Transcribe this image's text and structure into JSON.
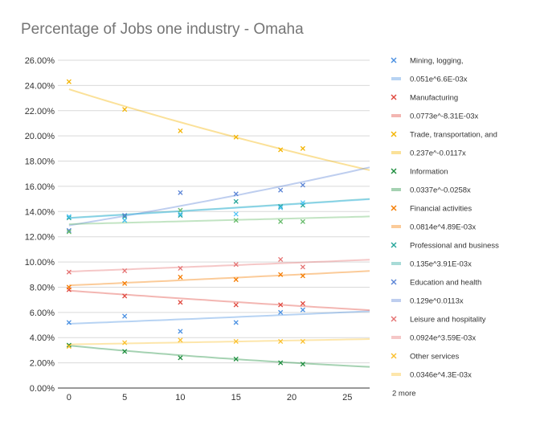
{
  "chart_data": {
    "type": "scatter",
    "title": "Percentage of Jobs one industry - Omaha",
    "xlabel": "",
    "ylabel": "",
    "xlim": [
      -1,
      27
    ],
    "ylim": [
      0,
      0.26
    ],
    "x_ticks": [
      "0",
      "5",
      "10",
      "15",
      "20",
      "25"
    ],
    "y_ticks": [
      "0.00%",
      "2.00%",
      "4.00%",
      "6.00%",
      "8.00%",
      "10.00%",
      "12.00%",
      "14.00%",
      "16.00%",
      "18.00%",
      "20.00%",
      "22.00%",
      "24.00%",
      "26.00%"
    ],
    "grid": true,
    "legend_position": "right",
    "legend_more": "2 more",
    "series": [
      {
        "name": "Mining, logging,",
        "color": "#4a90e2",
        "x": [
          0,
          5,
          10,
          15,
          19,
          21
        ],
        "y": [
          0.052,
          0.057,
          0.045,
          0.052,
          0.06,
          0.062
        ],
        "trend": {
          "label": "0.051e^6.6E-03x",
          "a": 0.051,
          "b": 0.0066
        }
      },
      {
        "name": "Manufacturing",
        "color": "#e0483e",
        "x": [
          0,
          5,
          10,
          15,
          19,
          21
        ],
        "y": [
          0.078,
          0.073,
          0.068,
          0.066,
          0.066,
          0.067
        ],
        "trend": {
          "label": "0.0773e^-8.31E-03x",
          "a": 0.0773,
          "b": -0.00831
        }
      },
      {
        "name": "Trade, transportation, and",
        "color": "#f4b400",
        "x": [
          0,
          5,
          10,
          15,
          19,
          21
        ],
        "y": [
          0.243,
          0.221,
          0.204,
          0.199,
          0.189,
          0.19
        ],
        "trend": {
          "label": "0.237e^-0.0117x",
          "a": 0.237,
          "b": -0.0117
        }
      },
      {
        "name": "Information",
        "color": "#1e8e3e",
        "x": [
          0,
          5,
          10,
          15,
          19,
          21
        ],
        "y": [
          0.034,
          0.029,
          0.024,
          0.023,
          0.02,
          0.019
        ],
        "trend": {
          "label": "0.0337e^-0.0258x",
          "a": 0.0337,
          "b": -0.0258
        }
      },
      {
        "name": "Financial activities",
        "color": "#f57c00",
        "x": [
          0,
          5,
          10,
          15,
          19,
          21
        ],
        "y": [
          0.08,
          0.083,
          0.088,
          0.086,
          0.09,
          0.089
        ],
        "trend": {
          "label": "0.0814e^4.89E-03x",
          "a": 0.0814,
          "b": 0.00489
        }
      },
      {
        "name": "Professional and business",
        "color": "#26a69a",
        "x": [
          0,
          5,
          10,
          15,
          19,
          21
        ],
        "y": [
          0.135,
          0.136,
          0.137,
          0.148,
          0.144,
          0.145
        ],
        "trend": {
          "label": "0.135e^3.91E-03x",
          "a": 0.135,
          "b": 0.00391
        }
      },
      {
        "name": "Education and health",
        "color": "#5c85d6",
        "x": [
          0,
          5,
          10,
          15,
          19,
          21
        ],
        "y": [
          0.125,
          0.137,
          0.155,
          0.154,
          0.157,
          0.161
        ],
        "trend": {
          "label": "0.129e^0.0113x",
          "a": 0.129,
          "b": 0.0113
        }
      },
      {
        "name": "Leisure and hospitality",
        "color": "#e57373",
        "x": [
          0,
          5,
          10,
          15,
          19,
          21
        ],
        "y": [
          0.092,
          0.093,
          0.095,
          0.098,
          0.102,
          0.096
        ],
        "trend": {
          "label": "0.0924e^3.59E-03x",
          "a": 0.0924,
          "b": 0.00359
        }
      },
      {
        "name": "Other services",
        "color": "#fbc02d",
        "x": [
          0,
          5,
          10,
          15,
          19,
          21
        ],
        "y": [
          0.033,
          0.036,
          0.038,
          0.037,
          0.037,
          0.037
        ],
        "trend": {
          "label": "0.0346e^4.3E-03x",
          "a": 0.0346,
          "b": 0.0043
        }
      },
      {
        "name": "",
        "color": "#66bb6a",
        "x": [
          0,
          5,
          10,
          15,
          19,
          21
        ],
        "y": [
          0.124,
          0.133,
          0.141,
          0.133,
          0.132,
          0.132
        ],
        "trend": {
          "label": "",
          "a": 0.13,
          "b": 0.0017
        }
      },
      {
        "name": "",
        "color": "#4fc3f7",
        "x": [
          0,
          5,
          10,
          15,
          19,
          21
        ],
        "y": [
          0.136,
          0.133,
          0.138,
          0.138,
          0.143,
          0.147
        ],
        "trend": {
          "label": "",
          "a": 0.1348,
          "b": 0.0039
        }
      }
    ]
  }
}
